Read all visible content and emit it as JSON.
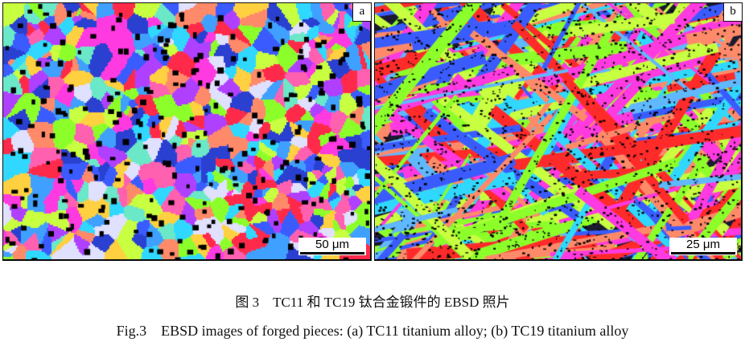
{
  "figure": {
    "panels": [
      {
        "label": "a",
        "scale_bar": "50 μm",
        "structure": "equiaxed"
      },
      {
        "label": "b",
        "scale_bar": "25 μm",
        "structure": "lamellar"
      }
    ],
    "caption_cn": "图 3　TC11 和 TC19 钛合金锻件的 EBSD 照片",
    "caption_en": "Fig.3　EBSD images of forged pieces: (a) TC11 titanium alloy; (b) TC19 titanium alloy",
    "palette": [
      "#ff2a4a",
      "#3a5cff",
      "#8cff2a",
      "#30d8ff",
      "#ff3ae0",
      "#b040ff",
      "#ff8a6a",
      "#6ae8c8",
      "#2a40d0",
      "#c8ff40",
      "#ff60b0",
      "#40a0ff",
      "#e0e0ff",
      "#ffd040"
    ]
  }
}
